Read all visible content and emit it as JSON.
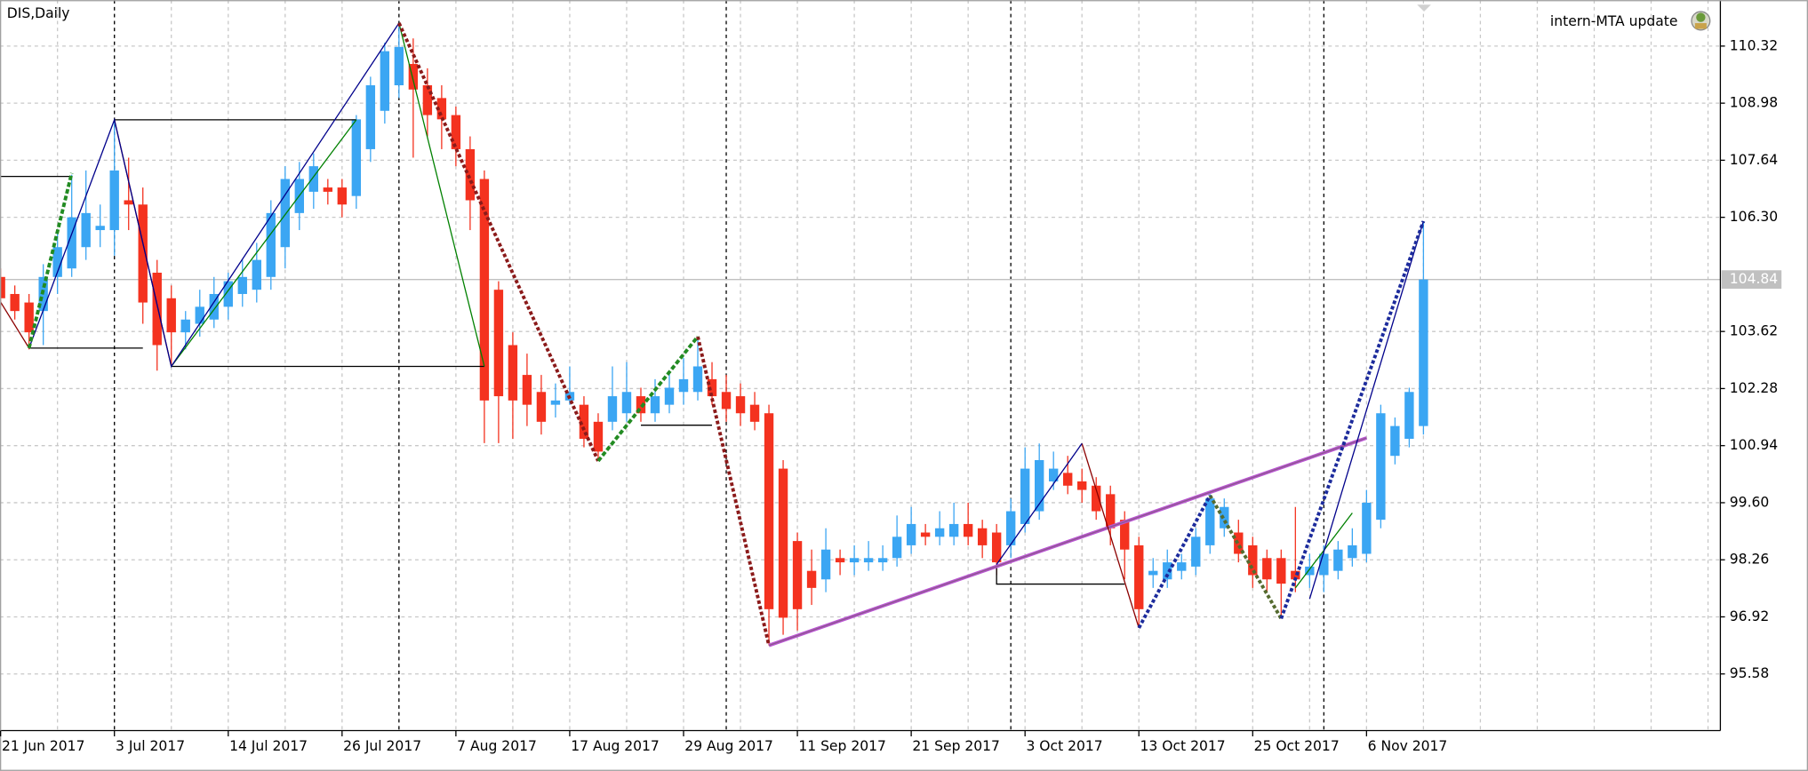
{
  "chart_data": {
    "type": "candlestick",
    "title": "DIS,Daily",
    "indicator": "intern-MTA update",
    "categories": [
      "21 Jun 2017",
      null,
      null,
      null,
      null,
      null,
      null,
      null,
      "3 Jul 2017",
      null,
      null,
      null,
      null,
      null,
      null,
      null,
      "14 Jul 2017",
      null,
      null,
      null,
      null,
      null,
      null,
      null,
      "26 Jul 2017",
      null,
      null,
      null,
      null,
      null,
      null,
      null,
      "7 Aug 2017",
      null,
      null,
      null,
      null,
      null,
      null,
      null,
      "17 Aug 2017",
      null,
      null,
      null,
      null,
      null,
      null,
      null,
      "29 Aug 2017",
      null,
      null,
      null,
      null,
      null,
      null,
      null,
      "11 Sep 2017",
      null,
      null,
      null,
      null,
      null,
      null,
      null,
      "21 Sep 2017",
      null,
      null,
      null,
      null,
      null,
      null,
      null,
      "3 Oct 2017",
      null,
      null,
      null,
      null,
      null,
      null,
      null,
      "13 Oct 2017",
      null,
      null,
      null,
      null,
      null,
      null,
      null,
      "25 Oct 2017",
      null,
      null,
      null,
      null,
      null,
      null,
      null,
      "6 Nov 2017",
      null,
      null,
      null,
      null
    ],
    "open": [
      104.9,
      104.5,
      104.3,
      104.1,
      104.9,
      105.1,
      105.6,
      106.0,
      106.0,
      106.7,
      106.6,
      105.0,
      104.4,
      103.6,
      103.8,
      103.9,
      104.2,
      104.5,
      104.6,
      104.9,
      105.6,
      106.4,
      106.9,
      107.0,
      107.0,
      106.8,
      107.9,
      108.8,
      109.4,
      109.9,
      109.4,
      109.1,
      108.7,
      107.9,
      107.2,
      104.6,
      103.3,
      102.6,
      102.2,
      101.9,
      102.0,
      101.9,
      101.5,
      101.5,
      101.7,
      102.1,
      101.7,
      101.9,
      102.2,
      102.2,
      102.5,
      102.2,
      102.1,
      101.9,
      101.7,
      100.4,
      98.7,
      98.0,
      97.8,
      98.3,
      98.2,
      98.2,
      98.2,
      98.3,
      98.6,
      98.9,
      98.8,
      98.8,
      99.1,
      99.0,
      98.9,
      98.6,
      99.1,
      99.4,
      100.1,
      100.3,
      100.1,
      100.0,
      99.8,
      99.2,
      98.6,
      97.9,
      97.8,
      98.0,
      98.1,
      98.6,
      99.0,
      98.9,
      98.6,
      98.3,
      98.3,
      98.0,
      97.9,
      97.9,
      98.0,
      98.3,
      98.4,
      99.2,
      100.7,
      101.1,
      101.4
    ],
    "high": [
      105.1,
      104.7,
      104.5,
      105.2,
      106.0,
      107.3,
      107.4,
      106.6,
      108.59,
      107.7,
      107.0,
      105.3,
      104.7,
      104.1,
      104.6,
      104.9,
      105.0,
      105.3,
      105.7,
      106.7,
      107.5,
      107.6,
      107.8,
      107.2,
      107.2,
      108.7,
      109.6,
      110.4,
      110.86,
      110.5,
      109.8,
      109.4,
      108.9,
      108.2,
      107.4,
      104.8,
      103.6,
      103.1,
      102.6,
      102.4,
      102.8,
      102.1,
      101.7,
      102.8,
      102.9,
      102.3,
      102.5,
      102.7,
      103.0,
      103.5,
      102.9,
      102.6,
      102.4,
      102.2,
      101.9,
      100.6,
      98.9,
      98.5,
      99.0,
      98.5,
      98.6,
      98.7,
      98.6,
      99.3,
      99.5,
      99.1,
      99.4,
      99.6,
      99.6,
      99.2,
      99.1,
      99.7,
      100.9,
      100.99,
      100.8,
      100.7,
      100.4,
      100.2,
      100.0,
      99.4,
      98.8,
      98.3,
      98.5,
      98.4,
      99.0,
      99.8,
      99.7,
      99.2,
      98.8,
      98.5,
      98.5,
      99.5,
      98.4,
      98.6,
      98.7,
      99.0,
      99.9,
      101.9,
      101.6,
      102.3,
      106.21
    ],
    "low": [
      104.2,
      103.9,
      103.2,
      103.3,
      104.5,
      104.9,
      105.3,
      105.6,
      105.4,
      106.0,
      103.8,
      102.7,
      102.8,
      103.2,
      103.5,
      103.7,
      103.9,
      104.2,
      104.3,
      104.6,
      105.1,
      106.0,
      106.5,
      106.6,
      106.3,
      106.5,
      107.6,
      108.5,
      109.1,
      107.7,
      108.2,
      107.9,
      107.5,
      106.0,
      101.0,
      101.0,
      101.1,
      101.4,
      101.2,
      101.6,
      101.9,
      100.9,
      100.6,
      101.3,
      101.5,
      101.5,
      101.5,
      101.7,
      101.9,
      102.0,
      101.9,
      101.5,
      101.4,
      101.3,
      96.25,
      96.5,
      96.6,
      97.2,
      97.5,
      97.9,
      97.9,
      98.0,
      98.0,
      98.1,
      98.4,
      98.6,
      98.6,
      98.6,
      98.6,
      98.3,
      97.9,
      98.3,
      98.9,
      99.2,
      99.9,
      99.8,
      99.6,
      99.2,
      98.6,
      97.8,
      96.66,
      97.6,
      97.6,
      97.8,
      97.9,
      98.4,
      98.8,
      98.2,
      97.6,
      97.5,
      96.88,
      97.5,
      97.6,
      97.5,
      97.8,
      98.1,
      98.2,
      99.0,
      100.5,
      100.9,
      101.2
    ],
    "close": [
      104.4,
      104.1,
      103.6,
      104.9,
      105.6,
      106.3,
      106.4,
      106.1,
      107.4,
      106.6,
      104.3,
      103.3,
      103.6,
      103.9,
      104.2,
      104.5,
      104.8,
      104.9,
      105.3,
      106.4,
      107.2,
      107.2,
      107.5,
      106.9,
      106.6,
      108.6,
      109.4,
      110.2,
      110.3,
      109.3,
      108.7,
      108.6,
      107.9,
      106.7,
      102.0,
      102.1,
      102.0,
      101.9,
      101.5,
      102.0,
      102.2,
      101.1,
      100.8,
      102.1,
      102.2,
      101.7,
      102.1,
      102.3,
      102.5,
      102.8,
      102.1,
      101.8,
      101.7,
      101.5,
      97.1,
      96.9,
      97.1,
      97.6,
      98.5,
      98.2,
      98.3,
      98.3,
      98.3,
      98.8,
      99.1,
      98.8,
      99.0,
      99.1,
      98.8,
      98.6,
      98.2,
      99.4,
      100.4,
      100.6,
      100.4,
      100.0,
      99.9,
      99.4,
      99.0,
      98.5,
      97.1,
      98.0,
      98.2,
      98.2,
      98.8,
      99.7,
      99.5,
      98.4,
      97.9,
      97.8,
      97.7,
      97.8,
      98.1,
      98.4,
      98.5,
      98.6,
      99.6,
      101.7,
      101.4,
      102.2,
      104.84
    ],
    "up_color": "#3ba6f3",
    "down_color": "#f4321f",
    "ylim": [
      94.25,
      111.4
    ],
    "yticks": [
      95.58,
      96.92,
      98.26,
      {
        "value": 99.6,
        "label": "99.60"
      },
      100.94,
      102.28,
      103.62,
      {
        "value": 106.3,
        "label": "106.30"
      },
      107.64,
      108.98,
      110.32
    ],
    "last_price": 104.84,
    "grid": true,
    "overlays": [
      {
        "color": "#000000",
        "width": 1,
        "dash": "none",
        "points": [
          [
            -1,
            107.26
          ],
          [
            5,
            107.26
          ]
        ]
      },
      {
        "color": "#000000",
        "width": 1,
        "dash": "none",
        "points": [
          [
            2,
            103.23
          ],
          [
            10,
            103.23
          ]
        ]
      },
      {
        "color": "#000000",
        "width": 1,
        "dash": "none",
        "points": [
          [
            8,
            108.59
          ],
          [
            25,
            108.59
          ]
        ]
      },
      {
        "color": "#000000",
        "width": 1,
        "dash": "none",
        "points": [
          [
            12,
            102.8
          ],
          [
            34,
            102.8
          ]
        ]
      },
      {
        "color": "#000000",
        "width": 1,
        "dash": "none",
        "points": [
          [
            45,
            101.42
          ],
          [
            50,
            101.42
          ]
        ]
      },
      {
        "color": "#000000",
        "width": 1,
        "dash": "none",
        "points": [
          [
            70,
            98.15
          ],
          [
            70,
            97.69
          ],
          [
            79,
            97.69
          ]
        ]
      },
      {
        "color": "#ba55d3",
        "width": 3,
        "dash": "none",
        "points": [
          [
            54,
            96.25
          ],
          [
            96,
            101.12
          ]
        ]
      },
      {
        "color": "#8b5a8b",
        "width": 1,
        "dash": "none",
        "points": [
          [
            54,
            96.25
          ],
          [
            96,
            101.12
          ]
        ]
      },
      {
        "color": "#8b0000",
        "width": 1,
        "dash": "none",
        "points": [
          [
            0,
            104.31
          ],
          [
            2,
            103.23
          ]
        ]
      },
      {
        "color": "#8b0000",
        "width": 1,
        "dash": "none",
        "points": [
          [
            8,
            108.59
          ],
          [
            12,
            102.8
          ]
        ]
      },
      {
        "color": "#8b0000",
        "width": 1,
        "dash": "none",
        "points": [
          [
            76,
            100.99
          ],
          [
            80,
            96.66
          ]
        ]
      },
      {
        "color": "#008000",
        "width": 1,
        "dash": "none",
        "points": [
          [
            12,
            102.8
          ],
          [
            25,
            108.59
          ]
        ]
      },
      {
        "color": "#008000",
        "width": 1,
        "dash": "none",
        "points": [
          [
            28,
            110.86
          ],
          [
            34,
            102.8
          ]
        ]
      },
      {
        "color": "#008000",
        "width": 1,
        "dash": "none",
        "points": [
          [
            91,
            97.6
          ],
          [
            95,
            99.36
          ]
        ]
      },
      {
        "color": "#00008b",
        "width": 1,
        "dash": "none",
        "points": [
          [
            2,
            103.23
          ],
          [
            8,
            108.59
          ],
          [
            12,
            102.8
          ],
          [
            28,
            110.86
          ]
        ]
      },
      {
        "color": "#00008b",
        "width": 1,
        "dash": "none",
        "points": [
          [
            70,
            98.15
          ],
          [
            76,
            100.99
          ]
        ]
      },
      {
        "color": "#00008b",
        "width": 1,
        "dash": "none",
        "points": [
          [
            92,
            97.34
          ],
          [
            100,
            106.21
          ]
        ]
      },
      {
        "color": "#8b1a1a",
        "width": 3,
        "dash": "3 2",
        "points": [
          [
            28,
            110.86
          ],
          [
            42,
            100.58
          ]
        ]
      },
      {
        "color": "#8b1a1a",
        "width": 3,
        "dash": "3 2",
        "points": [
          [
            49,
            103.5
          ],
          [
            54,
            96.25
          ]
        ]
      },
      {
        "color": "#228b22",
        "width": 3,
        "dash": "4 2",
        "points": [
          [
            2,
            103.23
          ],
          [
            5,
            107.34
          ]
        ]
      },
      {
        "color": "#228b22",
        "width": 3,
        "dash": "4 2",
        "points": [
          [
            42,
            100.58
          ],
          [
            49,
            103.5
          ]
        ]
      },
      {
        "color": "#556b2f",
        "width": 3,
        "dash": "3 2",
        "points": [
          [
            85,
            99.77
          ],
          [
            90,
            96.88
          ]
        ]
      },
      {
        "color": "#1c2b9c",
        "width": 3,
        "dash": "3 2",
        "points": [
          [
            80,
            96.66
          ],
          [
            85,
            99.77
          ]
        ]
      },
      {
        "color": "#1c2b9c",
        "width": 3,
        "dash": "3 2",
        "points": [
          [
            90,
            96.88
          ],
          [
            100,
            106.21
          ]
        ]
      }
    ]
  }
}
